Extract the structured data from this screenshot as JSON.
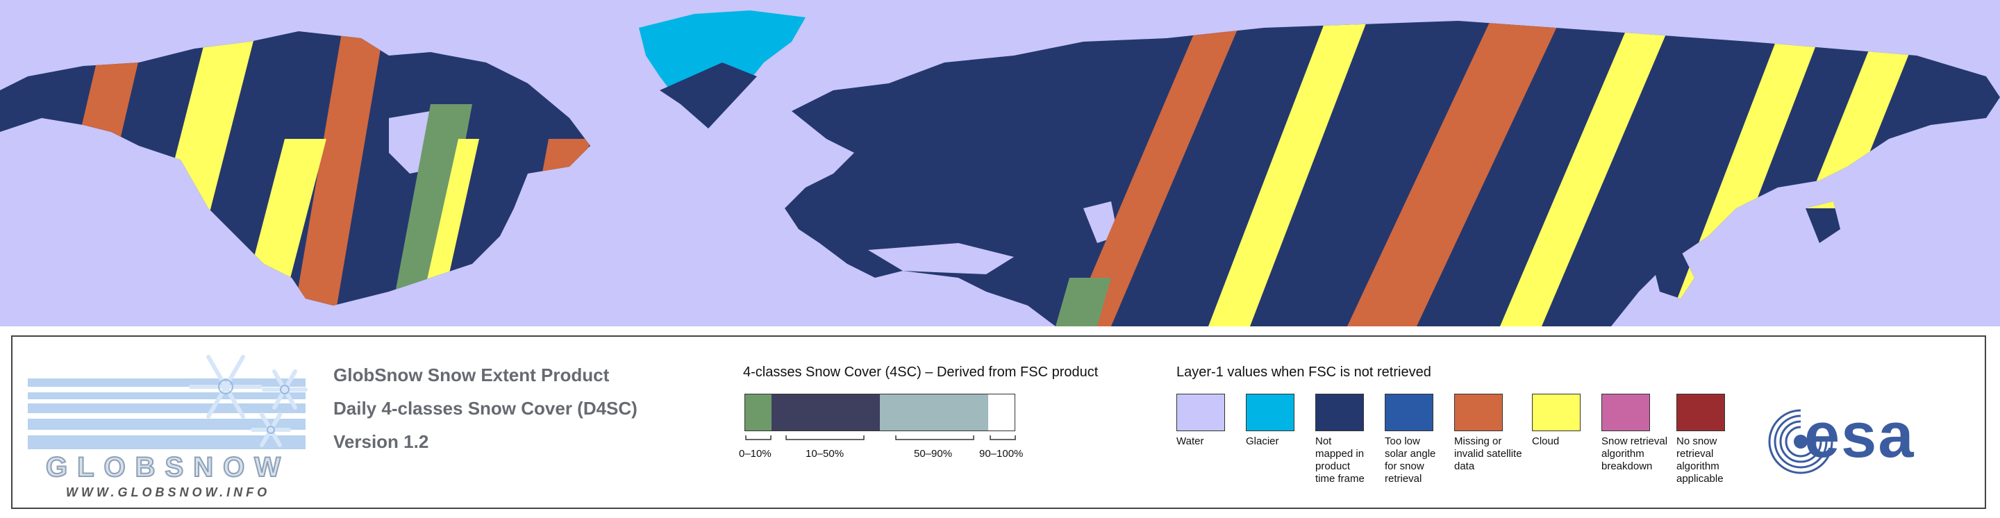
{
  "logo": {
    "wordmark": "GLOBSNOW",
    "website": "WWW.GLOBSNOW.INFO"
  },
  "product": {
    "title": "GlobSnow Snow Extent Product",
    "subtitle": "Daily 4-classes Snow Cover (D4SC)",
    "version": "Version 1.2"
  },
  "snow_cover_scale": {
    "title": "4-classes Snow Cover (4SC) – Derived from FSC product",
    "classes": [
      {
        "label": "0–10%",
        "color": "#6e9a6a"
      },
      {
        "label": "10–50%",
        "color": "#3e3e5e"
      },
      {
        "label": "50–90%",
        "color": "#9fb9bd"
      },
      {
        "label": "90–100%",
        "color": "#ffffff"
      }
    ]
  },
  "layer1_legend": {
    "title": "Layer-1 values when FSC is not retrieved",
    "items": [
      {
        "label": "Water",
        "color": "#c8c6fa"
      },
      {
        "label": "Glacier",
        "color": "#00b4e6"
      },
      {
        "label": "Not mapped in product time frame",
        "color": "#24386e"
      },
      {
        "label": "Too low solar angle for snow retrieval",
        "color": "#2a5aa6"
      },
      {
        "label": "Missing or invalid satellite data",
        "color": "#d06840"
      },
      {
        "label": "Cloud",
        "color": "#ffff60"
      },
      {
        "label": "Snow retrieval algorithm breakdown",
        "color": "#c866a4"
      },
      {
        "label": "No snow retrieval algorithm applicable",
        "color": "#9a2c30"
      }
    ]
  },
  "agency_logo": {
    "text": "esa",
    "color": "#3b5ca0"
  },
  "map": {
    "water_color": "#c8c6fa",
    "land_color": "#24386e",
    "glacier_color": "#00b4e6",
    "missing_color": "#d06840",
    "cloud_color": "#ffff60",
    "snowfree_color": "#6e9a6a"
  }
}
